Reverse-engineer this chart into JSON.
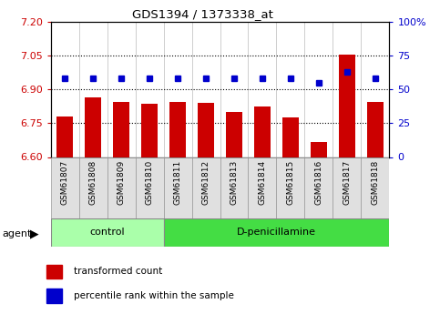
{
  "title": "GDS1394 / 1373338_at",
  "samples": [
    "GSM61807",
    "GSM61808",
    "GSM61809",
    "GSM61810",
    "GSM61811",
    "GSM61812",
    "GSM61813",
    "GSM61814",
    "GSM61815",
    "GSM61816",
    "GSM61817",
    "GSM61818"
  ],
  "bar_values": [
    6.78,
    6.865,
    6.845,
    6.835,
    6.845,
    6.84,
    6.8,
    6.825,
    6.775,
    6.665,
    7.055,
    6.845
  ],
  "dot_values": [
    58,
    58,
    58,
    58,
    58,
    58,
    58,
    58,
    58,
    55,
    63,
    58
  ],
  "bar_color": "#cc0000",
  "dot_color": "#0000cc",
  "ylim_left": [
    6.6,
    7.2
  ],
  "ylim_right": [
    0,
    100
  ],
  "yticks_left": [
    6.6,
    6.75,
    6.9,
    7.05,
    7.2
  ],
  "yticks_right": [
    0,
    25,
    50,
    75,
    100
  ],
  "ytick_labels_right": [
    "0",
    "25",
    "50",
    "75",
    "100%"
  ],
  "hlines": [
    6.75,
    6.9,
    7.05
  ],
  "control_count": 4,
  "dpenicillamine_count": 8,
  "control_color": "#aaffaa",
  "dpenicillamine_color": "#44dd44",
  "control_label": "control",
  "dpenicillamine_label": "D-penicillamine",
  "agent_label": "agent",
  "left_color": "#cc0000",
  "right_color": "#0000cc",
  "legend_red_label": "transformed count",
  "legend_blue_label": "percentile rank within the sample"
}
